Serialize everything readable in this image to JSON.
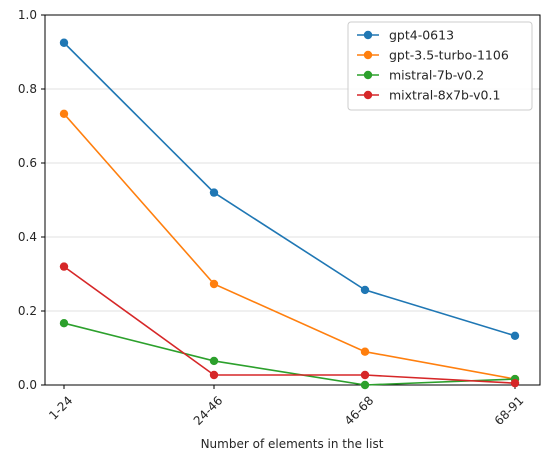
{
  "chart_data": {
    "type": "line",
    "title": "",
    "xlabel": "Number of elements in the list",
    "ylabel": "",
    "categories": [
      "1-24",
      "24-46",
      "46-68",
      "68-91"
    ],
    "ylim": [
      0,
      1.0
    ],
    "yticks": [
      "0.0",
      "0.2",
      "0.4",
      "0.6",
      "0.8",
      "1.0"
    ],
    "grid": "horizontal",
    "legend_position": "top-right",
    "series": [
      {
        "name": "gpt4-0613",
        "color": "#1f77b4",
        "values": [
          0.925,
          0.52,
          0.257,
          0.133
        ]
      },
      {
        "name": "gpt-3.5-turbo-1106",
        "color": "#ff7f0e",
        "values": [
          0.733,
          0.273,
          0.09,
          0.016
        ]
      },
      {
        "name": "mistral-7b-v0.2",
        "color": "#2ca02c",
        "values": [
          0.167,
          0.065,
          0.0,
          0.016
        ]
      },
      {
        "name": "mixtral-8x7b-v0.1",
        "color": "#d62728",
        "values": [
          0.32,
          0.027,
          0.027,
          0.005
        ]
      }
    ]
  }
}
